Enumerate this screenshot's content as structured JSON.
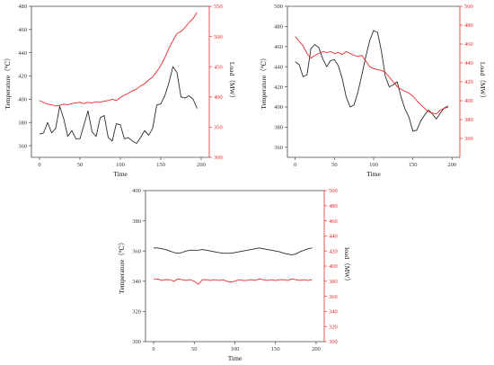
{
  "chart_data": [
    {
      "type": "line",
      "xlabel": "Time",
      "ylabel_left": "Temperature（℃）",
      "ylabel_right": "Load（MW）",
      "xlim": [
        -10,
        210
      ],
      "xticks": [
        0,
        50,
        100,
        150,
        200
      ],
      "ylim_left": [
        350,
        480
      ],
      "yticks_left": [
        360,
        380,
        400,
        420,
        440,
        460,
        480
      ],
      "ylim_right": [
        300,
        550
      ],
      "yticks_right": [
        300,
        350,
        400,
        450,
        500,
        550
      ],
      "grid": false,
      "colors": {
        "temperature": "#2b2b2b",
        "load": "#e8292b"
      },
      "series": [
        {
          "axis": "left",
          "color": "#2b2b2b",
          "x": [
            0,
            5,
            10,
            15,
            20,
            25,
            30,
            35,
            40,
            45,
            50,
            55,
            60,
            65,
            70,
            75,
            80,
            85,
            90,
            95,
            100,
            105,
            110,
            115,
            120,
            125,
            130,
            135,
            140,
            145,
            150,
            155,
            160,
            165,
            170,
            175,
            180,
            185,
            190,
            195
          ],
          "y": [
            370,
            371,
            380,
            371,
            375,
            394,
            383,
            368,
            373,
            366,
            366,
            378,
            390,
            372,
            368,
            384,
            386,
            367,
            364,
            379,
            378,
            366,
            367,
            364,
            362,
            367,
            373,
            369,
            375,
            395,
            396,
            403,
            414,
            428,
            423,
            402,
            401,
            403,
            400,
            392
          ]
        },
        {
          "axis": "right",
          "color": "#e8292b",
          "x": [
            0,
            5,
            10,
            15,
            20,
            25,
            30,
            35,
            40,
            45,
            50,
            55,
            60,
            65,
            70,
            75,
            80,
            85,
            90,
            95,
            100,
            105,
            110,
            115,
            120,
            125,
            130,
            135,
            140,
            145,
            150,
            155,
            160,
            165,
            170,
            175,
            180,
            185,
            190,
            195
          ],
          "y": [
            394,
            391,
            388,
            387,
            385,
            386,
            388,
            387,
            389,
            390,
            391,
            389,
            391,
            390,
            392,
            391,
            393,
            394,
            396,
            394,
            399,
            403,
            406,
            410,
            413,
            418,
            422,
            428,
            433,
            442,
            452,
            465,
            480,
            493,
            505,
            508,
            515,
            523,
            530,
            540
          ]
        }
      ]
    },
    {
      "type": "line",
      "xlabel": "Time",
      "ylabel_left": "Temperature（℃）",
      "ylabel_right": "Load（MW）",
      "xlim": [
        -10,
        210
      ],
      "xticks": [
        0,
        50,
        100,
        150,
        200
      ],
      "ylim_left": [
        350,
        500
      ],
      "yticks_left": [
        360,
        380,
        400,
        420,
        440,
        460,
        480,
        500
      ],
      "ylim_right": [
        340,
        500
      ],
      "yticks_right": [
        360,
        380,
        400,
        420,
        440,
        460,
        480,
        500
      ],
      "grid": false,
      "colors": {
        "temperature": "#2b2b2b",
        "load": "#e8292b"
      },
      "series": [
        {
          "axis": "left",
          "color": "#2b2b2b",
          "x": [
            0,
            5,
            10,
            15,
            20,
            25,
            30,
            35,
            40,
            45,
            50,
            55,
            60,
            65,
            70,
            75,
            80,
            85,
            90,
            95,
            100,
            105,
            110,
            115,
            120,
            125,
            130,
            135,
            140,
            145,
            150,
            155,
            160,
            165,
            170,
            175,
            180,
            185,
            190,
            195
          ],
          "y": [
            445,
            442,
            430,
            432,
            458,
            462,
            459,
            448,
            440,
            446,
            447,
            441,
            428,
            410,
            400,
            402,
            415,
            432,
            450,
            466,
            476,
            474,
            455,
            430,
            420,
            422,
            425,
            410,
            398,
            390,
            376,
            377,
            386,
            392,
            397,
            393,
            388,
            394,
            399,
            401
          ]
        },
        {
          "axis": "right",
          "color": "#e8292b",
          "x": [
            0,
            5,
            10,
            15,
            20,
            25,
            30,
            35,
            40,
            45,
            50,
            55,
            60,
            65,
            70,
            75,
            80,
            85,
            90,
            95,
            100,
            105,
            110,
            115,
            120,
            125,
            130,
            135,
            140,
            145,
            150,
            155,
            160,
            165,
            170,
            175,
            180,
            185,
            190,
            195
          ],
          "y": [
            468,
            463,
            458,
            450,
            445,
            448,
            450,
            452,
            451,
            452,
            450,
            451,
            449,
            452,
            450,
            448,
            447,
            448,
            442,
            436,
            434,
            433,
            432,
            430,
            425,
            420,
            415,
            412,
            410,
            408,
            405,
            400,
            396,
            392,
            388,
            387,
            386,
            390,
            392,
            393
          ]
        }
      ]
    },
    {
      "type": "line",
      "xlabel": "Time",
      "ylabel_left": "Temperature（℃）",
      "ylabel_right": "load（MW）",
      "xlim": [
        -10,
        210
      ],
      "xticks": [
        0,
        50,
        100,
        150,
        200
      ],
      "ylim_left": [
        300,
        400
      ],
      "yticks_left": [
        300,
        320,
        340,
        360,
        380,
        400
      ],
      "ylim_right": [
        300,
        500
      ],
      "yticks_right": [
        300,
        320,
        340,
        360,
        380,
        400,
        420,
        440,
        460,
        480,
        500
      ],
      "grid": false,
      "colors": {
        "temperature": "#2b2b2b",
        "load": "#e8292b"
      },
      "series": [
        {
          "axis": "left",
          "color": "#2b2b2b",
          "x": [
            0,
            5,
            10,
            15,
            20,
            25,
            30,
            35,
            40,
            45,
            50,
            55,
            60,
            65,
            70,
            75,
            80,
            85,
            90,
            95,
            100,
            105,
            110,
            115,
            120,
            125,
            130,
            135,
            140,
            145,
            150,
            155,
            160,
            165,
            170,
            175,
            180,
            185,
            190,
            195
          ],
          "y": [
            362,
            362,
            361.5,
            361,
            360,
            359,
            358.5,
            359,
            360,
            360.5,
            360.5,
            360.5,
            361,
            360.5,
            360,
            359.5,
            359,
            358.5,
            358.5,
            358.5,
            359,
            359.5,
            360,
            360.5,
            361,
            361.5,
            362,
            361.5,
            361,
            360.5,
            360,
            359.5,
            358.5,
            358,
            357.5,
            358,
            359.5,
            360.5,
            361.5,
            362
          ]
        },
        {
          "axis": "right",
          "color": "#e8292b",
          "x": [
            0,
            5,
            10,
            15,
            20,
            25,
            30,
            35,
            40,
            45,
            50,
            55,
            60,
            65,
            70,
            75,
            80,
            85,
            90,
            95,
            100,
            105,
            110,
            115,
            120,
            125,
            130,
            135,
            140,
            145,
            150,
            155,
            160,
            165,
            170,
            175,
            180,
            185,
            190,
            195
          ],
          "y": [
            383,
            383,
            381,
            382,
            382,
            380,
            383,
            382,
            381,
            382,
            380,
            376,
            382,
            382,
            381,
            382,
            381,
            382,
            380,
            379,
            380,
            382,
            381,
            381,
            382,
            381,
            383,
            382,
            381,
            382,
            381,
            382,
            382,
            381,
            383,
            382,
            381,
            382,
            381,
            382
          ]
        }
      ]
    }
  ]
}
